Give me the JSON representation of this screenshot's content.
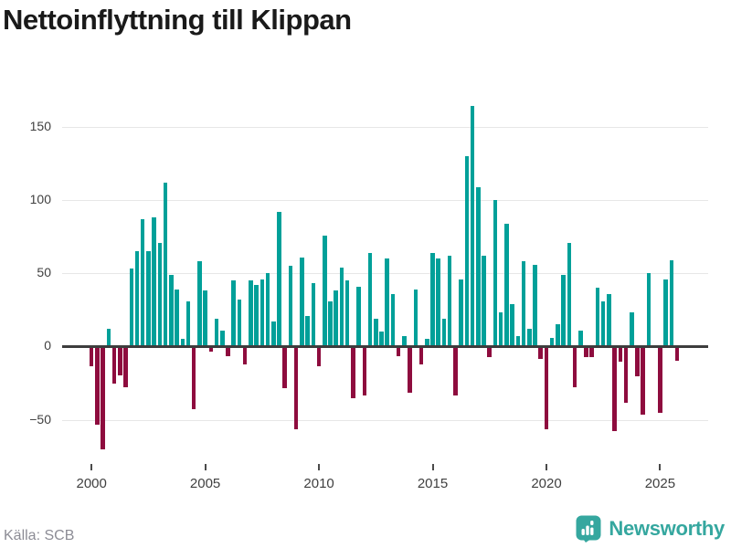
{
  "title": "Nettoinflyttning till Klippan",
  "footer": {
    "source_label": "Källa: SCB",
    "brand": "Newsworthy"
  },
  "colors": {
    "positive_bar": "#00a099",
    "negative_bar": "#8e0c3e",
    "grid": "#e7e7e7",
    "zero_line": "#3d3d3d",
    "axis_text": "#3f3f3f",
    "title_text": "#1a1a1a",
    "source_text": "#8c8c95",
    "brand_teal": "#35a79f"
  },
  "chart_data": {
    "type": "bar",
    "title": "Nettoinflyttning till Klippan",
    "x_unit": "quarter",
    "start_year": 2000,
    "end_year": 2025,
    "x_tick_labels": [
      "2000",
      "2005",
      "2010",
      "2015",
      "2020",
      "2025"
    ],
    "y_ticks": [
      150,
      100,
      50,
      0,
      -50
    ],
    "y_tick_labels": [
      "150",
      "100",
      "50",
      "0",
      "−50"
    ],
    "ylim": [
      -78,
      190
    ],
    "grid": "horizontal",
    "legend": "none",
    "values": [
      -13,
      -53,
      -70,
      12,
      -25,
      -19,
      -27,
      53,
      65,
      87,
      65,
      88,
      71,
      112,
      49,
      39,
      5,
      31,
      -42,
      58,
      38,
      -3,
      19,
      11,
      -6,
      45,
      32,
      -12,
      45,
      42,
      46,
      50,
      17,
      92,
      -28,
      55,
      -56,
      61,
      21,
      43,
      -13,
      76,
      31,
      38,
      54,
      45,
      -35,
      41,
      -33,
      64,
      19,
      10,
      60,
      36,
      -6,
      7,
      -31,
      39,
      -12,
      5,
      64,
      60,
      19,
      62,
      -33,
      46,
      130,
      164,
      109,
      62,
      -7,
      100,
      23,
      84,
      29,
      7,
      58,
      12,
      56,
      -8,
      -56,
      6,
      15,
      49,
      71,
      -27,
      11,
      -7,
      -7,
      40,
      31,
      36,
      -57,
      -10,
      -38,
      23,
      -20,
      -46,
      50,
      0,
      -45,
      46,
      59,
      -9
    ]
  }
}
